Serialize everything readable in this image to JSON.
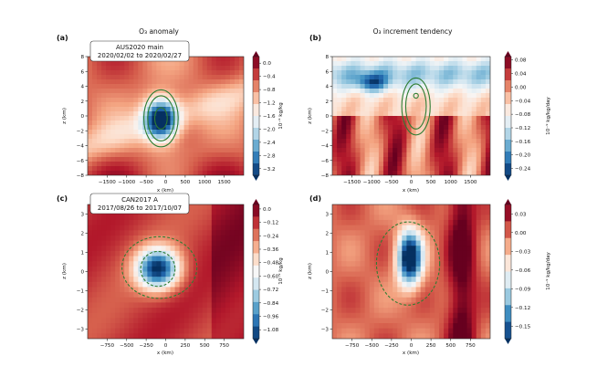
{
  "chart_data": [
    {
      "type": "heatmap",
      "panel_label": "(a)",
      "title": "O₃ anomaly",
      "annotation": [
        "AUS2020 main",
        "2020/02/02 to 2020/02/27"
      ],
      "xlabel": "x (km)",
      "ylabel": "z (km)",
      "xlim": [
        -2000,
        2000
      ],
      "ylim": [
        -8,
        8
      ],
      "xticks": [
        -1500,
        -1000,
        -500,
        0,
        500,
        1000,
        1500
      ],
      "yticks": [
        -8,
        -6,
        -4,
        -2,
        0,
        2,
        4,
        6,
        8
      ],
      "colorbar_label": "10⁻⁹ kg/kg",
      "colorbar_ticks": [
        0.0,
        -0.4,
        -0.8,
        -1.2,
        -1.6,
        -2.0,
        -2.4,
        -2.8,
        -3.2
      ],
      "colorbar_range": [
        -3.4,
        0.2
      ],
      "colormap": "RdBu_r",
      "contour_style": "solid",
      "contour_color": "#2e7d32"
    },
    {
      "type": "heatmap",
      "panel_label": "(b)",
      "title": "O₃ increment tendency",
      "xlabel": "x (km)",
      "ylabel": "z (km)",
      "xlim": [
        -2000,
        2000
      ],
      "ylim": [
        -8,
        8
      ],
      "xticks": [
        -1500,
        -1000,
        -500,
        0,
        500,
        1000,
        1500
      ],
      "yticks": [
        -8,
        -6,
        -4,
        -2,
        0,
        2,
        4,
        6,
        8
      ],
      "colorbar_label": "10⁻⁹ kg/kg/day",
      "colorbar_ticks": [
        0.08,
        0.04,
        0.0,
        -0.04,
        -0.08,
        -0.12,
        -0.16,
        -0.2,
        -0.24
      ],
      "colorbar_range": [
        -0.26,
        0.09
      ],
      "colormap": "RdBu_r",
      "contour_style": "solid",
      "contour_color": "#2e7d32"
    },
    {
      "type": "heatmap",
      "panel_label": "(c)",
      "annotation": [
        "CAN2017 A",
        "2017/08/26 to 2017/10/07"
      ],
      "xlabel": "x (km)",
      "ylabel": "z (km)",
      "xlim": [
        -1000,
        1000
      ],
      "ylim": [
        -3.5,
        3.5
      ],
      "xticks": [
        -750,
        -500,
        -250,
        0,
        250,
        500,
        750
      ],
      "yticks": [
        -3,
        -2,
        -1,
        0,
        1,
        2,
        3
      ],
      "colorbar_label": "10⁻⁹ kg/kg",
      "colorbar_ticks": [
        0.0,
        -0.12,
        -0.24,
        -0.36,
        -0.48,
        -0.6,
        -0.72,
        -0.84,
        -0.96,
        -1.08
      ],
      "colorbar_range": [
        -1.16,
        0.04
      ],
      "colormap": "RdBu_r",
      "contour_style": "dashed",
      "contour_color": "#2e7d32"
    },
    {
      "type": "heatmap",
      "panel_label": "(d)",
      "xlabel": "x (km)",
      "ylabel": "z (km)",
      "xlim": [
        -1000,
        1000
      ],
      "ylim": [
        -3.5,
        3.5
      ],
      "xticks": [
        -750,
        -500,
        -250,
        0,
        250,
        500,
        750
      ],
      "yticks": [
        -3,
        -2,
        -1,
        0,
        1,
        2,
        3
      ],
      "colorbar_label": "10⁻⁹ kg/kg/day",
      "colorbar_ticks": [
        0.03,
        0.0,
        -0.03,
        -0.06,
        -0.09,
        -0.12,
        -0.15
      ],
      "colorbar_range": [
        -0.17,
        0.045
      ],
      "colormap": "RdBu_r",
      "contour_style": "dashed",
      "contour_color": "#2e7d32"
    }
  ]
}
